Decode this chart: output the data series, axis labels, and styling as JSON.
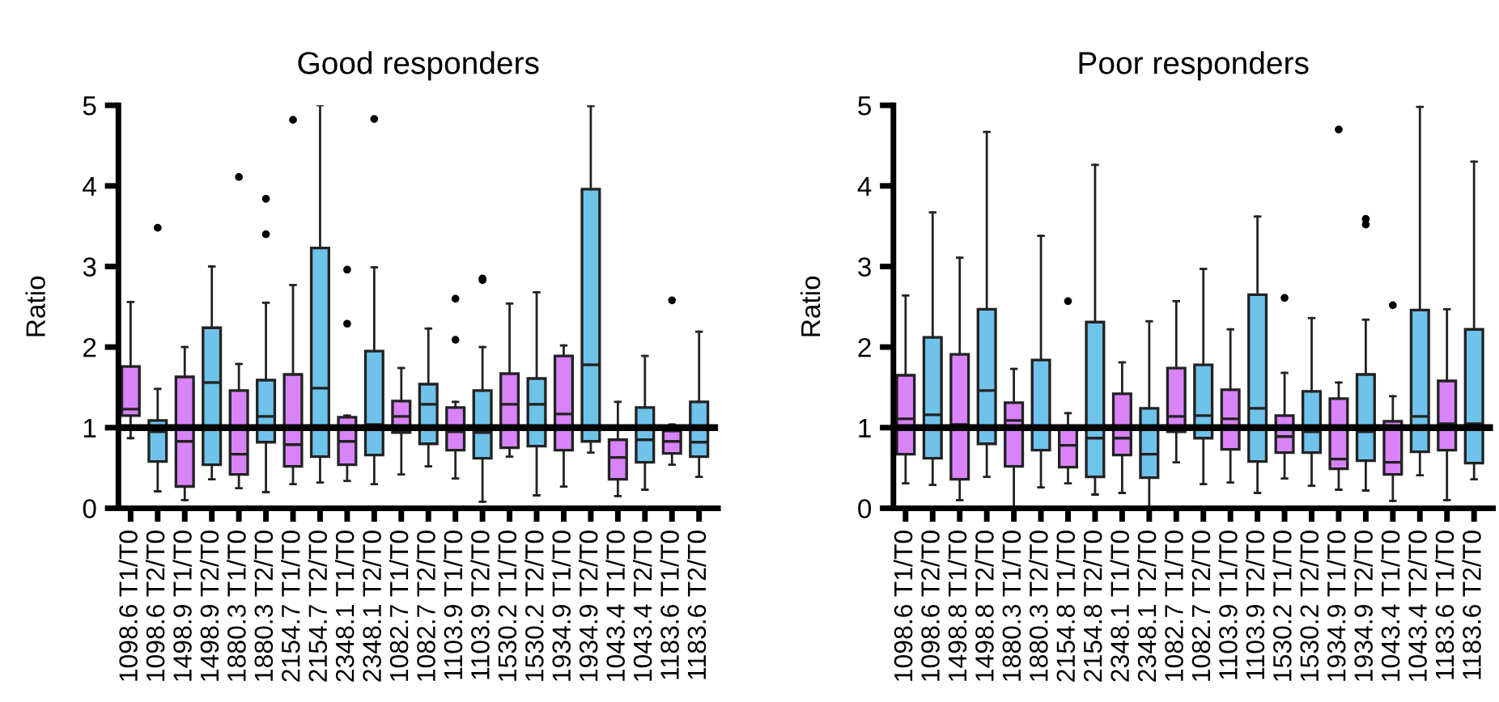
{
  "chart_data": [
    {
      "type": "box",
      "title": "Good responders",
      "ylabel": "Ratio",
      "ylim": [
        0,
        5
      ],
      "yticks": [
        0,
        1,
        2,
        3,
        4,
        5
      ],
      "categories": [
        "1098.6 T1/T0",
        "1098.6 T2/T0",
        "1498.9 T1/T0",
        "1498.9 T2/T0",
        "1880.3 T1/T0",
        "1880.3 T2/T0",
        "2154.7 T1/T0",
        "2154.7 T2/T0",
        "2348.1 T1/T0",
        "2348.1 T2/T0",
        "1082.7 T1/T0",
        "1082.7 T2/T0",
        "1103.9 T1/T0",
        "1103.9 T2/T0",
        "1530.2 T1/T0",
        "1530.2 T2/T0",
        "1934.9 T1/T0",
        "1934.9 T2/T0",
        "1043.4 T1/T0",
        "1043.4 T2/T0",
        "1183.6 T1/T0",
        "1183.6 T2/T0"
      ],
      "colors": [
        "#d883f8",
        "#6fc2ea",
        "#d883f8",
        "#6fc2ea",
        "#d883f8",
        "#6fc2ea",
        "#d883f8",
        "#6fc2ea",
        "#d883f8",
        "#6fc2ea",
        "#d883f8",
        "#6fc2ea",
        "#d883f8",
        "#6fc2ea",
        "#d883f8",
        "#6fc2ea",
        "#d883f8",
        "#6fc2ea",
        "#d883f8",
        "#6fc2ea",
        "#d883f8",
        "#6fc2ea"
      ],
      "boxes": [
        {
          "low": 0.87,
          "q1": 1.15,
          "median": 1.23,
          "q3": 1.76,
          "high": 2.56
        },
        {
          "low": 0.21,
          "q1": 0.58,
          "median": 0.95,
          "q3": 1.09,
          "high": 1.48,
          "outliers": [
            3.48
          ]
        },
        {
          "low": 0.1,
          "q1": 0.27,
          "median": 0.83,
          "q3": 1.63,
          "high": 2.0
        },
        {
          "low": 0.36,
          "q1": 0.54,
          "median": 1.56,
          "q3": 2.24,
          "high": 3.0
        },
        {
          "low": 0.25,
          "q1": 0.42,
          "median": 0.67,
          "q3": 1.46,
          "high": 1.79,
          "outliers": [
            4.11
          ]
        },
        {
          "low": 0.2,
          "q1": 0.82,
          "median": 1.14,
          "q3": 1.59,
          "high": 2.55,
          "outliers": [
            3.84,
            3.4
          ]
        },
        {
          "low": 0.3,
          "q1": 0.52,
          "median": 0.79,
          "q3": 1.66,
          "high": 2.77,
          "outliers": [
            4.82
          ]
        },
        {
          "low": 0.32,
          "q1": 0.64,
          "median": 1.49,
          "q3": 3.23,
          "high": 5.0
        },
        {
          "low": 0.34,
          "q1": 0.54,
          "median": 0.83,
          "q3": 1.13,
          "high": 1.15,
          "outliers": [
            2.96,
            2.29
          ]
        },
        {
          "low": 0.3,
          "q1": 0.66,
          "median": 1.04,
          "q3": 1.95,
          "high": 2.99,
          "outliers": [
            4.83
          ]
        },
        {
          "low": 0.42,
          "q1": 0.94,
          "median": 1.14,
          "q3": 1.33,
          "high": 1.74
        },
        {
          "low": 0.52,
          "q1": 0.8,
          "median": 1.29,
          "q3": 1.54,
          "high": 2.23
        },
        {
          "low": 0.37,
          "q1": 0.72,
          "median": 0.95,
          "q3": 1.25,
          "high": 1.32,
          "outliers": [
            2.6,
            2.09
          ]
        },
        {
          "low": 0.08,
          "q1": 0.62,
          "median": 0.94,
          "q3": 1.46,
          "high": 2.0,
          "outliers": [
            2.83,
            2.85
          ]
        },
        {
          "low": 0.64,
          "q1": 0.75,
          "median": 1.29,
          "q3": 1.67,
          "high": 2.54
        },
        {
          "low": 0.16,
          "q1": 0.77,
          "median": 1.29,
          "q3": 1.61,
          "high": 2.68
        },
        {
          "low": 0.27,
          "q1": 0.72,
          "median": 1.17,
          "q3": 1.89,
          "high": 2.02
        },
        {
          "low": 0.69,
          "q1": 0.83,
          "median": 1.78,
          "q3": 3.96,
          "high": 4.99
        },
        {
          "low": 0.15,
          "q1": 0.36,
          "median": 0.63,
          "q3": 0.85,
          "high": 1.32
        },
        {
          "low": 0.23,
          "q1": 0.57,
          "median": 0.85,
          "q3": 1.25,
          "high": 1.89
        },
        {
          "low": 0.54,
          "q1": 0.68,
          "median": 0.83,
          "q3": 0.96,
          "high": 1.04,
          "outliers": [
            2.58
          ]
        },
        {
          "low": 0.39,
          "q1": 0.64,
          "median": 0.82,
          "q3": 1.32,
          "high": 2.19
        }
      ],
      "ref_lines": [
        {
          "axis": "y",
          "value": 1,
          "color": "#000000"
        }
      ]
    },
    {
      "type": "box",
      "title": "Poor responders",
      "ylabel": "Ratio",
      "ylim": [
        0,
        5
      ],
      "yticks": [
        0,
        1,
        2,
        3,
        4,
        5
      ],
      "categories": [
        "1098.6 T1/T0",
        "1098.6 T2/T0",
        "1498.8 T1/T0",
        "1498.8 T2/T0",
        "1880.3 T1/T0",
        "1880.3 T2/T0",
        "2154.8 T1/T0",
        "2154.8 T2/T0",
        "2348.1 T1/T0",
        "2348.1 T2/T0",
        "1082.7 T1/T0",
        "1082.7 T2/T0",
        "1103.9 T1/T0",
        "1103.9 T2/T0",
        "1530.2 T1/T0",
        "1530.2 T2/T0",
        "1934.9 T1/T0",
        "1934.9 T2/T0",
        "1043.4 T1/T0",
        "1043.4 T2/T0",
        "1183.6 T1/T0",
        "1183.6 T2/T0"
      ],
      "colors": [
        "#d883f8",
        "#6fc2ea",
        "#d883f8",
        "#6fc2ea",
        "#d883f8",
        "#6fc2ea",
        "#d883f8",
        "#6fc2ea",
        "#d883f8",
        "#6fc2ea",
        "#d883f8",
        "#6fc2ea",
        "#d883f8",
        "#6fc2ea",
        "#d883f8",
        "#6fc2ea",
        "#d883f8",
        "#6fc2ea",
        "#d883f8",
        "#6fc2ea",
        "#d883f8",
        "#6fc2ea"
      ],
      "boxes": [
        {
          "low": 0.31,
          "q1": 0.67,
          "median": 1.11,
          "q3": 1.65,
          "high": 2.64
        },
        {
          "low": 0.29,
          "q1": 0.62,
          "median": 1.16,
          "q3": 2.12,
          "high": 3.67
        },
        {
          "low": 0.1,
          "q1": 0.36,
          "median": 1.04,
          "q3": 1.91,
          "high": 3.11
        },
        {
          "low": 0.39,
          "q1": 0.8,
          "median": 1.46,
          "q3": 2.47,
          "high": 4.67
        },
        {
          "low": 0.0,
          "q1": 0.52,
          "median": 1.09,
          "q3": 1.31,
          "high": 1.73
        },
        {
          "low": 0.26,
          "q1": 0.72,
          "median": 1.0,
          "q3": 1.84,
          "high": 3.38
        },
        {
          "low": 0.31,
          "q1": 0.51,
          "median": 0.78,
          "q3": 0.99,
          "high": 1.18,
          "outliers": [
            2.57
          ]
        },
        {
          "low": 0.17,
          "q1": 0.39,
          "median": 0.87,
          "q3": 2.31,
          "high": 4.26
        },
        {
          "low": 0.19,
          "q1": 0.66,
          "median": 0.87,
          "q3": 1.42,
          "high": 1.81
        },
        {
          "low": 0.0,
          "q1": 0.38,
          "median": 0.67,
          "q3": 1.24,
          "high": 2.32
        },
        {
          "low": 0.57,
          "q1": 0.95,
          "median": 1.14,
          "q3": 1.74,
          "high": 2.57
        },
        {
          "low": 0.3,
          "q1": 0.87,
          "median": 1.15,
          "q3": 1.78,
          "high": 2.97
        },
        {
          "low": 0.32,
          "q1": 0.73,
          "median": 1.11,
          "q3": 1.47,
          "high": 2.22
        },
        {
          "low": 0.19,
          "q1": 0.58,
          "median": 1.24,
          "q3": 2.65,
          "high": 3.62
        },
        {
          "low": 0.37,
          "q1": 0.69,
          "median": 0.89,
          "q3": 1.15,
          "high": 1.68,
          "outliers": [
            2.61
          ]
        },
        {
          "low": 0.28,
          "q1": 0.69,
          "median": 0.95,
          "q3": 1.45,
          "high": 2.36
        },
        {
          "low": 0.23,
          "q1": 0.49,
          "median": 0.61,
          "q3": 1.36,
          "high": 1.56,
          "outliers": [
            4.7
          ]
        },
        {
          "low": 0.22,
          "q1": 0.59,
          "median": 0.95,
          "q3": 1.66,
          "high": 2.34,
          "outliers": [
            3.52,
            3.59
          ]
        },
        {
          "low": 0.09,
          "q1": 0.42,
          "median": 0.57,
          "q3": 1.08,
          "high": 1.39,
          "outliers": [
            2.52
          ]
        },
        {
          "low": 0.41,
          "q1": 0.7,
          "median": 1.14,
          "q3": 2.46,
          "high": 4.98
        },
        {
          "low": 0.1,
          "q1": 0.72,
          "median": 1.05,
          "q3": 1.58,
          "high": 2.47
        },
        {
          "low": 0.36,
          "q1": 0.56,
          "median": 1.05,
          "q3": 2.22,
          "high": 4.3
        }
      ],
      "ref_lines": [
        {
          "axis": "y",
          "value": 1,
          "color": "#000000"
        }
      ]
    }
  ]
}
